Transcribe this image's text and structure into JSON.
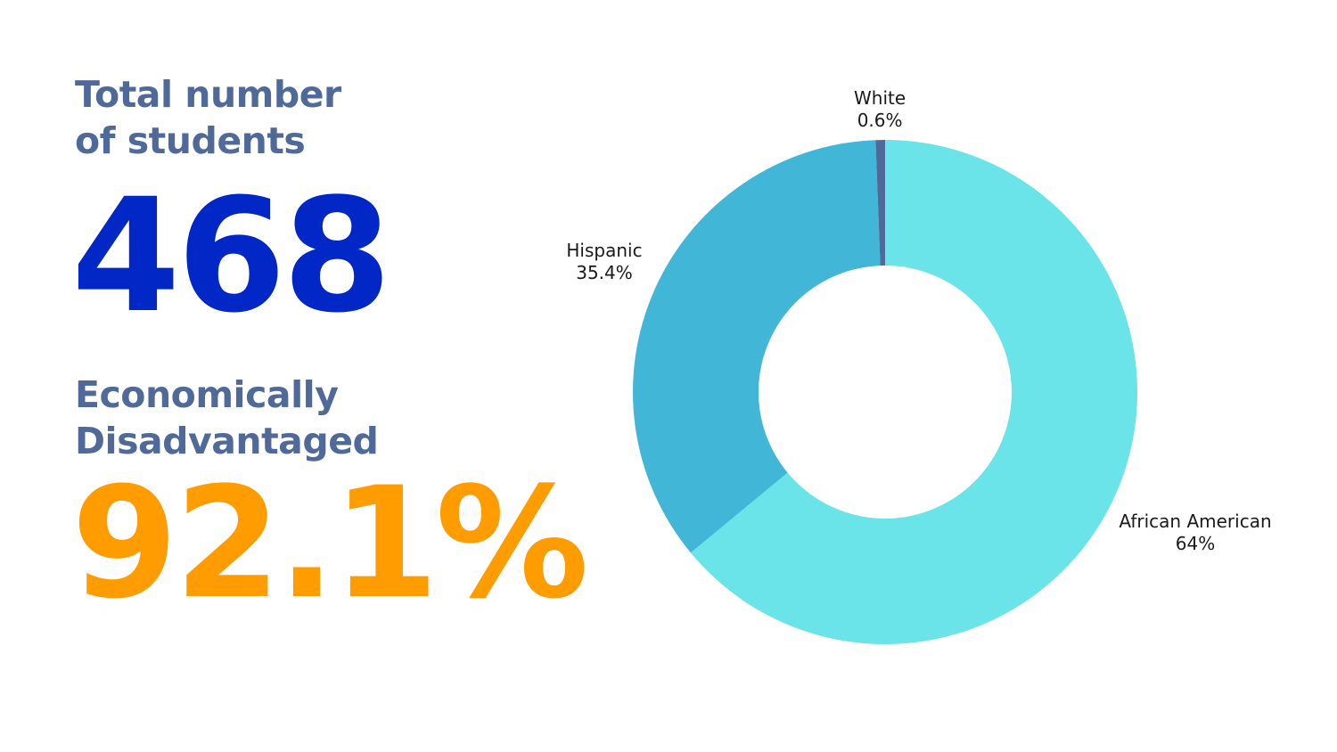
{
  "students": {
    "label_line1": "Total number",
    "label_line2": "of students",
    "value": "468"
  },
  "economically_disadvantaged": {
    "label_line1": "Economically",
    "label_line2": "Disadvantaged",
    "value": "92.1%"
  },
  "colors": {
    "label_text": "#4f6a99",
    "students_value": "#0127c6",
    "econ_value": "#ff9d00"
  },
  "chart_data": {
    "type": "pie",
    "donut": true,
    "slices": [
      {
        "label": "African American",
        "value": 64,
        "display": "64%",
        "color": "#6ae4e8"
      },
      {
        "label": "Hispanic",
        "value": 35.4,
        "display": "35.4%",
        "color": "#42b6d6"
      },
      {
        "label": "White",
        "value": 0.6,
        "display": "0.6%",
        "color": "#4f6a99"
      }
    ]
  }
}
